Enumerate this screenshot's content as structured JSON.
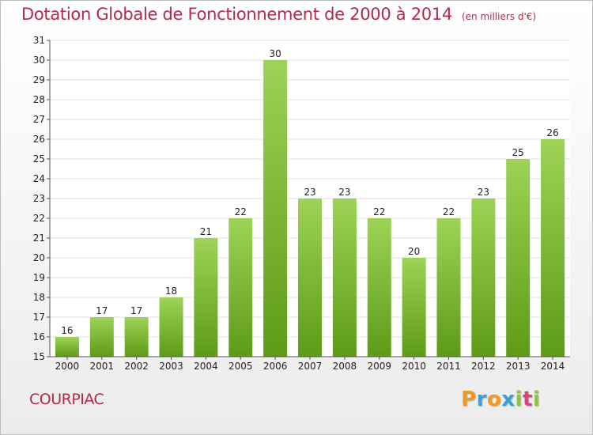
{
  "header": {
    "title": "Dotation Globale de Fonctionnement de 2000 à 2014",
    "subtitle": "(en milliers d'€)"
  },
  "commune": "COURPIAC",
  "logo": {
    "text": "Proxiti",
    "letters": [
      "P",
      "r",
      "o",
      "x",
      "i",
      "t",
      "i"
    ],
    "colors": [
      "#f29a1e",
      "#3aa0d8",
      "#f29a1e",
      "#3aa0d8",
      "#8cc63f",
      "#e0407a",
      "#8cc63f"
    ]
  },
  "colors": {
    "title": "#b22a4a",
    "bar_top": "#9dd356",
    "bar_bottom": "#5d9b16",
    "grid": "#e2e2e2"
  },
  "chart_data": {
    "type": "bar",
    "title": "Dotation Globale de Fonctionnement de 2000 à 2014",
    "subtitle": "(en milliers d'€)",
    "xlabel": "",
    "ylabel": "",
    "categories": [
      "2000",
      "2001",
      "2002",
      "2003",
      "2004",
      "2005",
      "2006",
      "2007",
      "2008",
      "2009",
      "2010",
      "2011",
      "2012",
      "2013",
      "2014"
    ],
    "values": [
      16,
      17,
      17,
      18,
      21,
      22,
      30,
      23,
      23,
      22,
      20,
      22,
      23,
      25,
      26
    ],
    "ylim": [
      15,
      31
    ],
    "yticks": [
      15,
      16,
      17,
      18,
      19,
      20,
      21,
      22,
      23,
      24,
      25,
      26,
      27,
      28,
      29,
      30,
      31
    ],
    "grid": true,
    "data_labels": true,
    "legend": "none"
  }
}
